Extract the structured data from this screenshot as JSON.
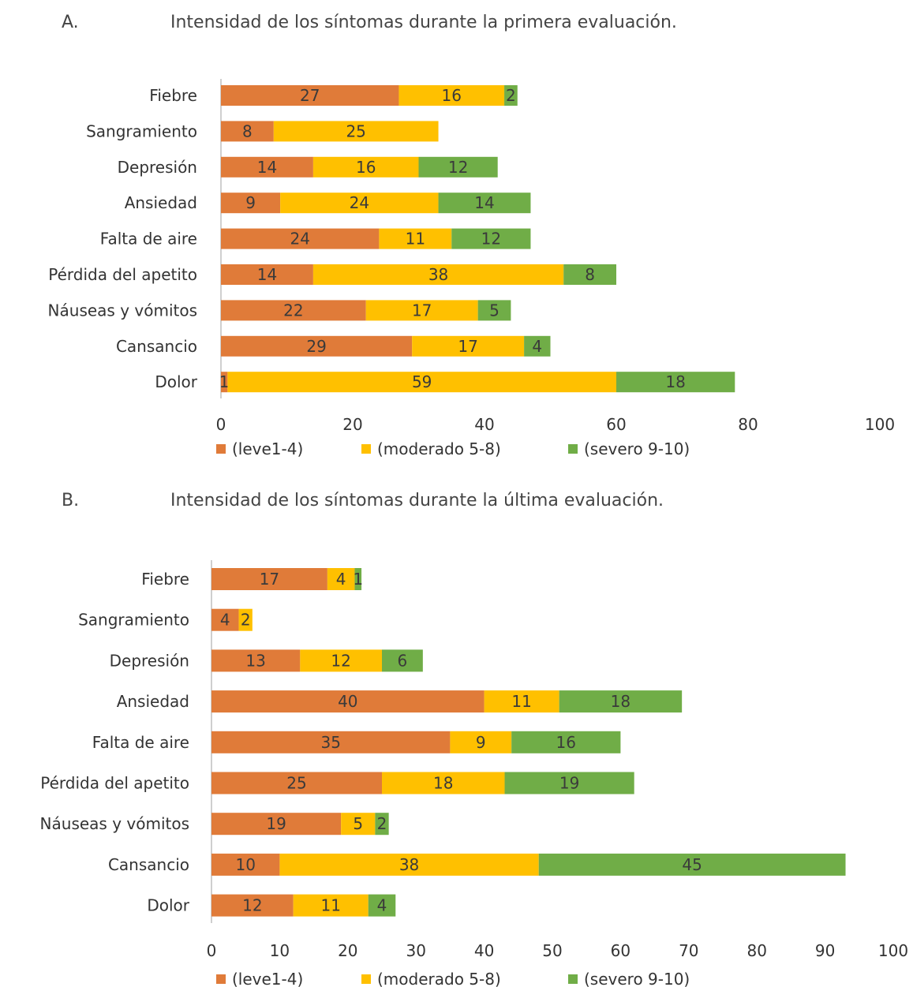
{
  "colors": {
    "leve": "#E07B39",
    "moderado": "#FFC000",
    "severo": "#70AD47",
    "axis": "#BFBFBF",
    "text": "#333333",
    "label_text": "#3A3A3A"
  },
  "chart_data": [
    {
      "type": "bar",
      "orientation": "horizontal",
      "stacked": true,
      "panel_label": "A.",
      "title": "Intensidad de los síntomas durante la primera evaluación.",
      "categories": [
        "Fiebre",
        "Sangramiento",
        "Depresión",
        "Ansiedad",
        "Falta de aire",
        "Pérdida del apetito",
        "Náuseas y vómitos",
        "Cansancio",
        "Dolor"
      ],
      "series": [
        {
          "name": "(leve1-4)",
          "values": [
            27,
            8,
            14,
            9,
            24,
            14,
            22,
            29,
            1
          ]
        },
        {
          "name": "(moderado 5-8)",
          "values": [
            16,
            25,
            16,
            24,
            11,
            38,
            17,
            17,
            59
          ]
        },
        {
          "name": "(severo 9-10)",
          "values": [
            2,
            0,
            12,
            14,
            12,
            8,
            5,
            4,
            18
          ]
        }
      ],
      "xlim": [
        0,
        100
      ],
      "xticks": [
        0,
        20,
        40,
        60,
        80,
        100
      ],
      "legend_position": "bottom",
      "grid": false
    },
    {
      "type": "bar",
      "orientation": "horizontal",
      "stacked": true,
      "panel_label": "B.",
      "title": "Intensidad de los síntomas durante la última evaluación.",
      "categories": [
        "Fiebre",
        "Sangramiento",
        "Depresión",
        "Ansiedad",
        "Falta de aire",
        "Pérdida del apetito",
        "Náuseas y vómitos",
        "Cansancio",
        "Dolor"
      ],
      "series": [
        {
          "name": "(leve1-4)",
          "values": [
            17,
            4,
            13,
            40,
            35,
            25,
            19,
            10,
            12
          ]
        },
        {
          "name": "(moderado 5-8)",
          "values": [
            4,
            2,
            12,
            11,
            9,
            18,
            5,
            38,
            11
          ]
        },
        {
          "name": "(severo 9-10)",
          "values": [
            1,
            0,
            6,
            18,
            16,
            19,
            2,
            45,
            4
          ]
        }
      ],
      "xlim": [
        0,
        100
      ],
      "xticks": [
        0,
        10,
        20,
        30,
        40,
        50,
        60,
        70,
        80,
        90,
        100
      ],
      "legend_position": "bottom",
      "grid": false
    }
  ]
}
